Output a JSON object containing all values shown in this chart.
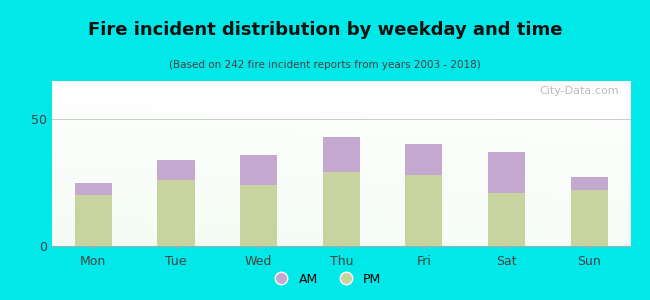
{
  "title": "Fire incident distribution by weekday and time",
  "subtitle": "(Based on 242 fire incident reports from years 2003 - 2018)",
  "categories": [
    "Mon",
    "Tue",
    "Wed",
    "Thu",
    "Fri",
    "Sat",
    "Sun"
  ],
  "pm_values": [
    20,
    26,
    24,
    29,
    28,
    21,
    22
  ],
  "am_values": [
    5,
    8,
    12,
    14,
    12,
    16,
    5
  ],
  "am_color": "#c4a8d0",
  "pm_color": "#c8d4a0",
  "background_outer": "#00e8e8",
  "ylim": [
    0,
    65
  ],
  "yticks": [
    0,
    50
  ],
  "bar_width": 0.45,
  "watermark": "⌕ City-Data.com"
}
